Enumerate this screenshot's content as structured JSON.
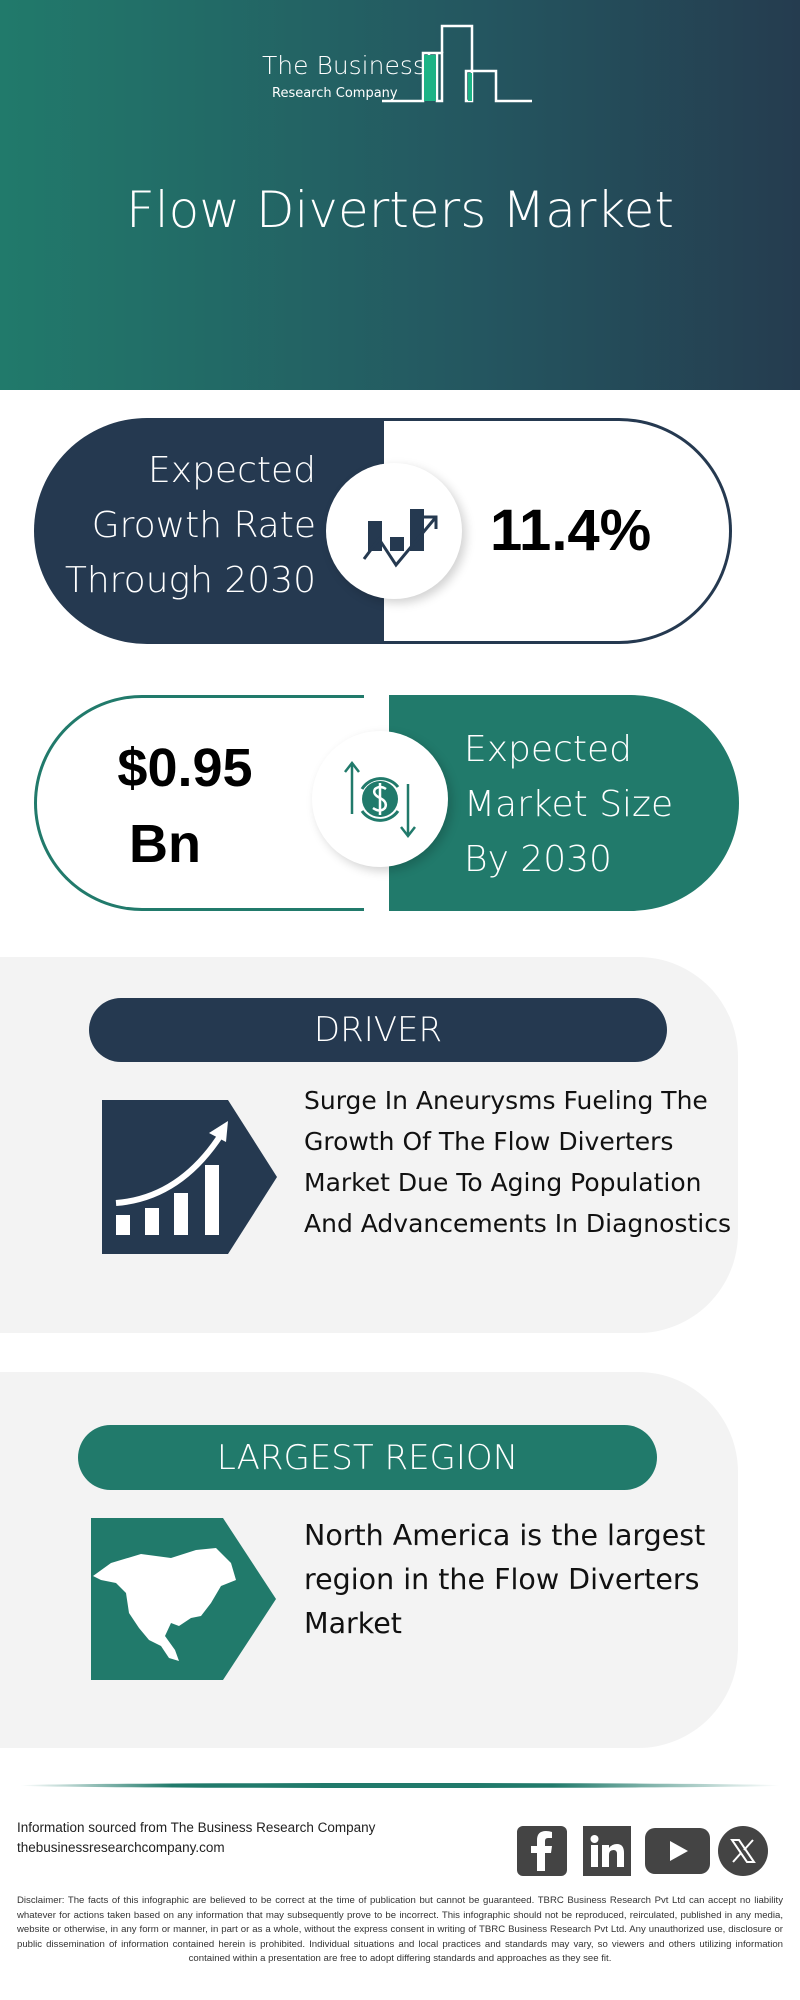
{
  "logo": {
    "line1": "The Business",
    "line2": "Research Company"
  },
  "header": {
    "title": "Flow Diverters Market"
  },
  "colors": {
    "navy": "#253950",
    "teal": "#217a6b",
    "panel": "#f3f3f3"
  },
  "growth": {
    "label_lines": [
      "Expected",
      "Growth Rate",
      "Through 2030"
    ],
    "value": "11.4%",
    "icon": "growth-chart-icon"
  },
  "market": {
    "value_lines": [
      "$0.95",
      "Bn"
    ],
    "label_lines": [
      "Expected",
      "Market Size",
      "By 2030"
    ],
    "icon": "dollar-exchange-icon"
  },
  "driver": {
    "heading": "DRIVER",
    "text": "Surge In Aneurysms Fueling The Growth Of The Flow Diverters Market Due To Aging Population And Advancements In Diagnostics",
    "icon": "rising-bar-chart-icon"
  },
  "region": {
    "heading": "LARGEST REGION",
    "text": "North America is the largest region in the Flow Diverters Market",
    "icon": "north-america-map-icon"
  },
  "footer": {
    "source": "Information sourced from The Business Research Company",
    "website": "thebusinessresearchcompany.com",
    "social": [
      "facebook",
      "linkedin",
      "youtube",
      "x"
    ],
    "disclaimer": "Disclaimer: The facts of this infographic are believed to be correct at the time of publication but cannot be guaranteed. TBRC Business Research Pvt Ltd can accept no liability whatever for actions taken based on any information that may subsequently prove to be incorrect. This infographic should not be reproduced, reirculated, published in any media, website or otherwise, in any form or manner, in part or as a whole, without the express consent in writing of TBRC Business Research Pvt Ltd. Any unauthorized use, disclosure or public dissemination of information contained herein is prohibited. Individual situations and local practices and standards may vary, so viewers and others utilizing information contained within a presentation are free to adopt differing standards and approaches as they see fit."
  }
}
